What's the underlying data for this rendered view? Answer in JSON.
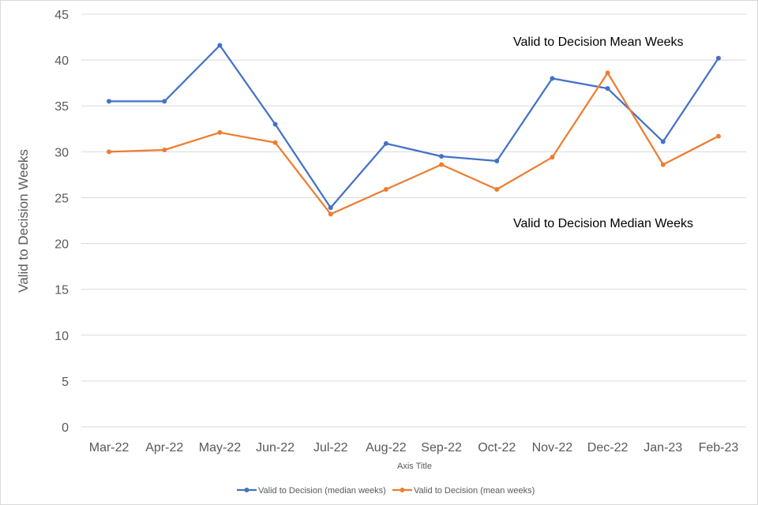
{
  "chart_data": {
    "type": "line",
    "categories": [
      "Mar-22",
      "Apr-22",
      "May-22",
      "Jun-22",
      "Jul-22",
      "Aug-22",
      "Sep-22",
      "Oct-22",
      "Nov-22",
      "Dec-22",
      "Jan-23",
      "Feb-23"
    ],
    "series": [
      {
        "name": "Valid to Decision (median weeks)",
        "color": "#4472c4",
        "values": [
          35.5,
          35.5,
          41.6,
          33.0,
          23.9,
          30.9,
          29.5,
          29.0,
          38.0,
          36.9,
          31.1,
          40.2
        ]
      },
      {
        "name": "Valid to Decision (mean weeks)",
        "color": "#ed7d31",
        "values": [
          30.0,
          30.2,
          32.1,
          31.0,
          23.2,
          25.9,
          28.6,
          25.9,
          29.4,
          38.6,
          28.6,
          31.7
        ]
      }
    ],
    "xlabel": "Axis Title",
    "ylabel": "Valid to Decision Weeks",
    "ylim": [
      0,
      45
    ],
    "yticks": [
      "0",
      "5",
      "10",
      "15",
      "20",
      "25",
      "30",
      "35",
      "40",
      "45"
    ],
    "grid": true,
    "legend": "bottom",
    "annotations": [
      "Valid to Decision Mean Weeks",
      "Valid to Decision Median Weeks"
    ]
  }
}
